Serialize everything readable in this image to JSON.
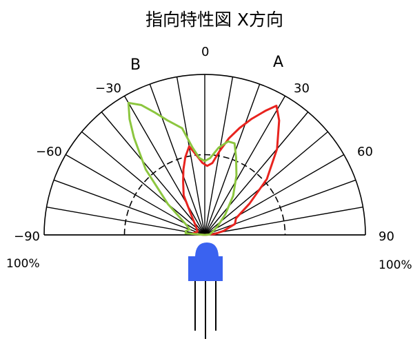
{
  "chart_data": {
    "type": "polar",
    "title": "指向特性図 X方向",
    "angle_range": [
      -90,
      90
    ],
    "angle_tick_labels": [
      {
        "angle": -90,
        "text": "−90"
      },
      {
        "angle": -60,
        "text": "−60"
      },
      {
        "angle": -30,
        "text": "−30"
      },
      {
        "angle": 0,
        "text": "0"
      },
      {
        "angle": 30,
        "text": "30"
      },
      {
        "angle": 60,
        "text": "60"
      },
      {
        "angle": 90,
        "text": "90"
      }
    ],
    "radial_range": [
      0,
      100
    ],
    "radial_label_left": "100%",
    "radial_label_right": "100%",
    "spoke_step_deg": 10,
    "dashed_ring_value": 50,
    "side_labels": [
      {
        "text": "A",
        "angle": 20
      },
      {
        "text": "B",
        "angle": -20
      }
    ],
    "series": [
      {
        "color": "#e8231e",
        "points": [
          [
            -85,
            8
          ],
          [
            -75,
            6
          ],
          [
            -65,
            5
          ],
          [
            -55,
            6
          ],
          [
            -45,
            8
          ],
          [
            -35,
            14
          ],
          [
            -28,
            28
          ],
          [
            -22,
            36
          ],
          [
            -18,
            43
          ],
          [
            -14,
            50
          ],
          [
            -10,
            56
          ],
          [
            -6,
            50
          ],
          [
            -2,
            45
          ],
          [
            2,
            43
          ],
          [
            6,
            45
          ],
          [
            10,
            53
          ],
          [
            14,
            62
          ],
          [
            18,
            70
          ],
          [
            22,
            78
          ],
          [
            26,
            86
          ],
          [
            29,
            92
          ],
          [
            33,
            85
          ],
          [
            40,
            70
          ],
          [
            48,
            52
          ],
          [
            55,
            34
          ],
          [
            62,
            22
          ],
          [
            70,
            20
          ],
          [
            78,
            12
          ],
          [
            85,
            6
          ]
        ]
      },
      {
        "color": "#8cc63f",
        "points": [
          [
            -85,
            12
          ],
          [
            -78,
            12
          ],
          [
            -70,
            10
          ],
          [
            -60,
            14
          ],
          [
            -50,
            30
          ],
          [
            -42,
            55
          ],
          [
            -36,
            75
          ],
          [
            -33,
            86
          ],
          [
            -30,
            95
          ],
          [
            -26,
            90
          ],
          [
            -22,
            82
          ],
          [
            -18,
            75
          ],
          [
            -12,
            68
          ],
          [
            -8,
            55
          ],
          [
            -4,
            48
          ],
          [
            0,
            46
          ],
          [
            4,
            48
          ],
          [
            9,
            55
          ],
          [
            14,
            60
          ],
          [
            18,
            60
          ],
          [
            22,
            52
          ],
          [
            28,
            42
          ],
          [
            36,
            30
          ],
          [
            45,
            18
          ],
          [
            55,
            10
          ],
          [
            65,
            6
          ],
          [
            75,
            4
          ],
          [
            85,
            3
          ]
        ]
      }
    ]
  },
  "icons": {
    "led": "led-icon"
  },
  "colors": {
    "led_body": "#3a62f0",
    "grid": "#000000"
  }
}
